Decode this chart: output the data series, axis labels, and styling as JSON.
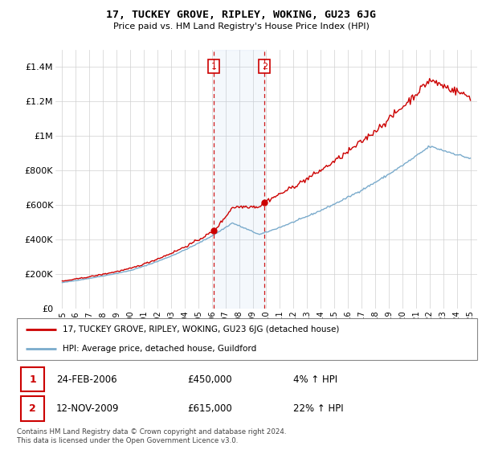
{
  "title": "17, TUCKEY GROVE, RIPLEY, WOKING, GU23 6JG",
  "subtitle": "Price paid vs. HM Land Registry's House Price Index (HPI)",
  "legend_line1": "17, TUCKEY GROVE, RIPLEY, WOKING, GU23 6JG (detached house)",
  "legend_line2": "HPI: Average price, detached house, Guildford",
  "sale1_date_str": "24-FEB-2006",
  "sale1_price_str": "£450,000",
  "sale1_hpi_str": "4% ↑ HPI",
  "sale2_date_str": "12-NOV-2009",
  "sale2_price_str": "£615,000",
  "sale2_hpi_str": "22% ↑ HPI",
  "footer": "Contains HM Land Registry data © Crown copyright and database right 2024.\nThis data is licensed under the Open Government Licence v3.0.",
  "red_color": "#cc0000",
  "blue_color": "#7aabcc",
  "grid_color": "#d0d0d0",
  "ylim_max": 1500000,
  "yticks": [
    0,
    200000,
    400000,
    600000,
    800000,
    1000000,
    1200000,
    1400000
  ],
  "ytick_labels": [
    "£0",
    "£200K",
    "£400K",
    "£600K",
    "£800K",
    "£1M",
    "£1.2M",
    "£1.4M"
  ],
  "sale1_price": 450000,
  "sale2_price": 615000,
  "sale1_x": 2006.15,
  "sale2_x": 2009.87,
  "xlim_lo": 1994.5,
  "xlim_hi": 2025.5,
  "xtick_years": [
    1995,
    1996,
    1997,
    1998,
    1999,
    2000,
    2001,
    2002,
    2003,
    2004,
    2005,
    2006,
    2007,
    2008,
    2009,
    2010,
    2011,
    2012,
    2013,
    2014,
    2015,
    2016,
    2017,
    2018,
    2019,
    2020,
    2021,
    2022,
    2023,
    2024,
    2025
  ]
}
